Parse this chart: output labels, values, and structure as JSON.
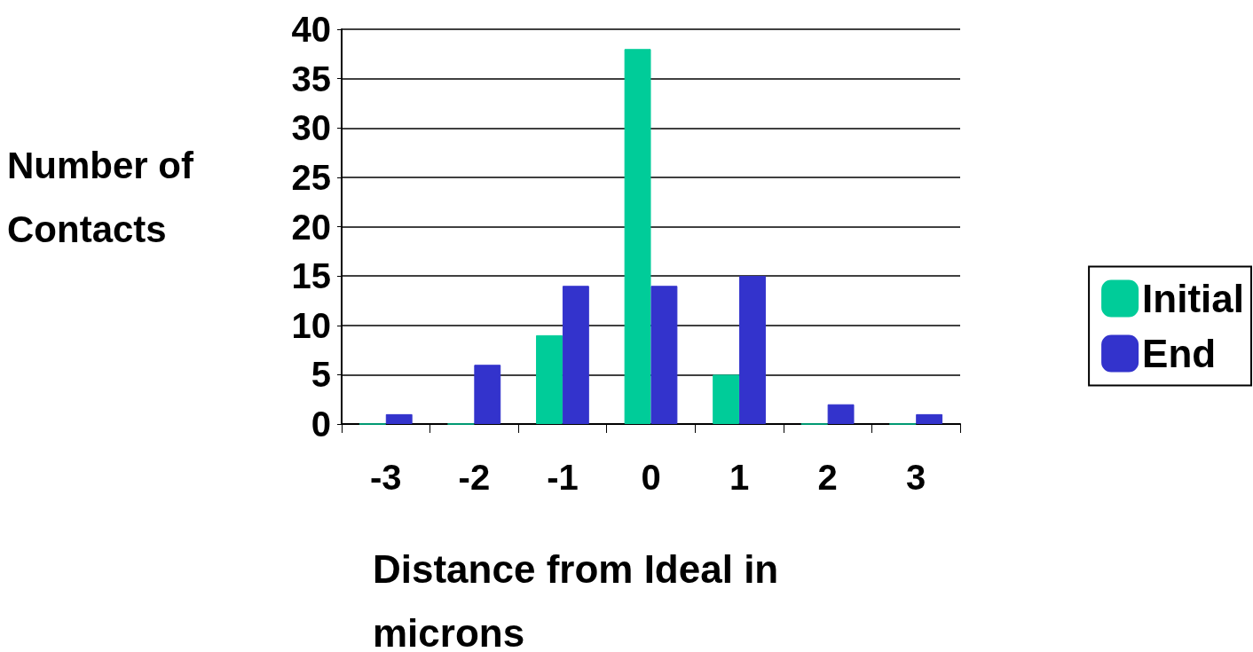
{
  "chart_data": {
    "type": "bar",
    "xlabel": "Distance from Ideal in microns",
    "ylabel": "Number of Contacts",
    "categories": [
      "-3",
      "-2",
      "-1",
      "0",
      "1",
      "2",
      "3"
    ],
    "series": [
      {
        "name": "Initial",
        "color": "#00cc99",
        "values": [
          0,
          0,
          9,
          38,
          5,
          0,
          0
        ]
      },
      {
        "name": "End",
        "color": "#3333cc",
        "values": [
          1,
          6,
          14,
          14,
          15,
          2,
          1
        ]
      }
    ],
    "ylim": [
      0,
      40
    ],
    "yticks": [
      0,
      5,
      10,
      15,
      20,
      25,
      30,
      35,
      40
    ],
    "grid": "y",
    "legend": "right"
  }
}
